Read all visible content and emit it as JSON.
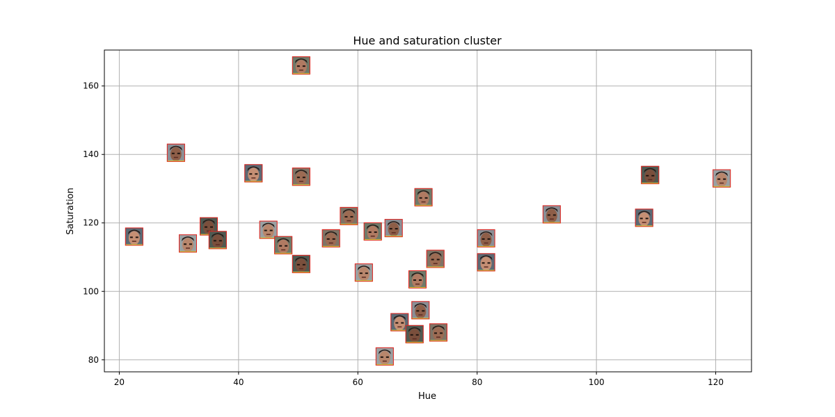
{
  "chart_data": {
    "type": "scatter",
    "title": "Hue and saturation cluster",
    "xlabel": "Hue",
    "ylabel": "Saturation",
    "xlim": [
      17.5,
      126.0
    ],
    "ylim": [
      76.5,
      170.5
    ],
    "xticks": [
      20,
      40,
      60,
      80,
      100,
      120
    ],
    "yticks": [
      80,
      100,
      120,
      140,
      160
    ],
    "grid": true,
    "marker": "face-thumbnail",
    "points": [
      {
        "x": 50.5,
        "y": 166.0
      },
      {
        "x": 29.5,
        "y": 140.5
      },
      {
        "x": 42.5,
        "y": 134.5
      },
      {
        "x": 50.5,
        "y": 133.5
      },
      {
        "x": 109.0,
        "y": 134.0
      },
      {
        "x": 121.0,
        "y": 133.0
      },
      {
        "x": 71.0,
        "y": 127.5
      },
      {
        "x": 92.5,
        "y": 122.5
      },
      {
        "x": 108.0,
        "y": 121.5
      },
      {
        "x": 58.5,
        "y": 122.0
      },
      {
        "x": 35.0,
        "y": 119.0
      },
      {
        "x": 45.0,
        "y": 118.0
      },
      {
        "x": 62.5,
        "y": 117.5
      },
      {
        "x": 66.0,
        "y": 118.5
      },
      {
        "x": 22.5,
        "y": 116.0
      },
      {
        "x": 55.5,
        "y": 115.5
      },
      {
        "x": 36.5,
        "y": 115.0
      },
      {
        "x": 31.5,
        "y": 114.0
      },
      {
        "x": 47.5,
        "y": 113.5
      },
      {
        "x": 81.5,
        "y": 115.5
      },
      {
        "x": 81.5,
        "y": 108.5
      },
      {
        "x": 73.0,
        "y": 109.5
      },
      {
        "x": 50.5,
        "y": 108.0
      },
      {
        "x": 61.0,
        "y": 105.5
      },
      {
        "x": 70.0,
        "y": 103.5
      },
      {
        "x": 70.5,
        "y": 94.5
      },
      {
        "x": 67.0,
        "y": 91.0
      },
      {
        "x": 73.5,
        "y": 88.0
      },
      {
        "x": 69.5,
        "y": 87.5
      },
      {
        "x": 64.5,
        "y": 81.0
      }
    ]
  }
}
